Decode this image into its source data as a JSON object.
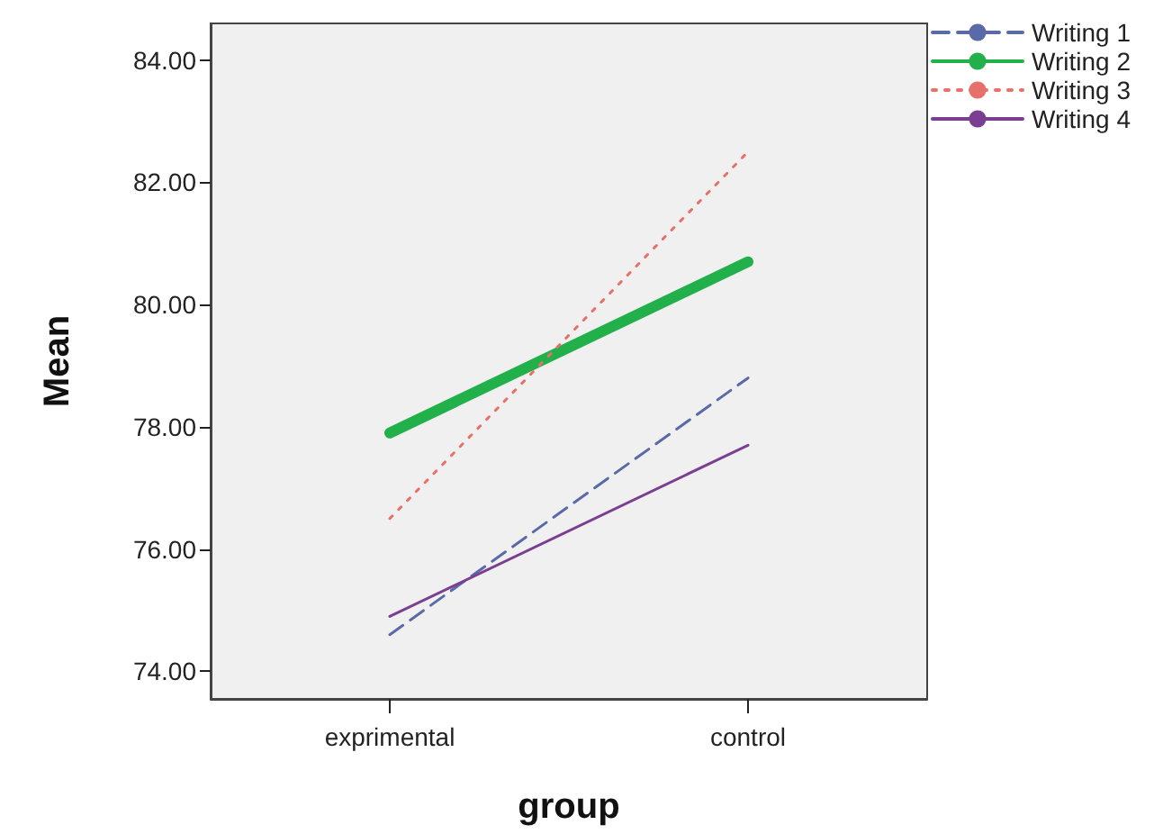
{
  "chart_data": {
    "type": "line",
    "xlabel": "group",
    "ylabel": "Mean",
    "categories": [
      "exprimental",
      "control"
    ],
    "series": [
      {
        "name": "Writing 1",
        "color": "#5a6aa8",
        "line_style": "dashed",
        "values": [
          74.6,
          78.8
        ]
      },
      {
        "name": "Writing 2",
        "color": "#22b04a",
        "line_style": "solid",
        "values": [
          77.9,
          80.7
        ]
      },
      {
        "name": "Writing 3",
        "color": "#e8706b",
        "line_style": "dotted",
        "values": [
          76.5,
          82.5
        ]
      },
      {
        "name": "Writing 4",
        "color": "#7b3f91",
        "line_style": "solid",
        "values": [
          74.9,
          77.7
        ]
      }
    ],
    "ylim": [
      73.55,
      84.6
    ],
    "yticks": [
      {
        "value": 74,
        "label": "74.00"
      },
      {
        "value": 76,
        "label": "76.00"
      },
      {
        "value": 78,
        "label": "78.00"
      },
      {
        "value": 80,
        "label": "80.00"
      },
      {
        "value": 82,
        "label": "82.00"
      },
      {
        "value": 84,
        "label": "84.00"
      }
    ],
    "grid": false,
    "legend": "top right",
    "marker": "none"
  }
}
